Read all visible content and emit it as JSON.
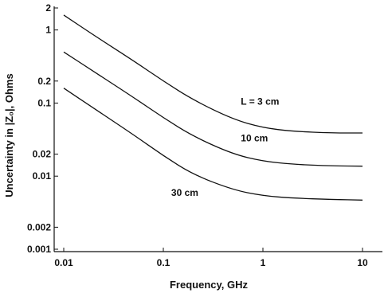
{
  "chart_data": {
    "type": "line",
    "title": "",
    "xlabel": "Frequency, GHz",
    "ylabel": "Uncertainty in |Z₀|, Ohms",
    "xscale": "log",
    "yscale": "log",
    "xlim": [
      0.01,
      10
    ],
    "ylim": [
      0.001,
      2
    ],
    "grid": false,
    "xticks": [
      {
        "value": 0.01,
        "label": "0.01"
      },
      {
        "value": 0.1,
        "label": "0.1"
      },
      {
        "value": 1,
        "label": "1"
      },
      {
        "value": 10,
        "label": "10"
      }
    ],
    "yticks": [
      {
        "value": 2,
        "label": "2"
      },
      {
        "value": 1,
        "label": "1"
      },
      {
        "value": 0.2,
        "label": "0.2"
      },
      {
        "value": 0.1,
        "label": "0.1"
      },
      {
        "value": 0.02,
        "label": "0.02"
      },
      {
        "value": 0.01,
        "label": "0.01"
      },
      {
        "value": 0.002,
        "label": "0.002"
      },
      {
        "value": 0.001,
        "label": "0.001"
      }
    ],
    "series": [
      {
        "name": "L = 3 cm",
        "label_at": [
          0.6,
          0.095
        ],
        "points": [
          [
            0.01,
            1.6
          ],
          [
            0.02,
            0.85
          ],
          [
            0.05,
            0.38
          ],
          [
            0.1,
            0.2
          ],
          [
            0.2,
            0.11
          ],
          [
            0.5,
            0.06
          ],
          [
            1,
            0.046
          ],
          [
            2,
            0.041
          ],
          [
            5,
            0.039
          ],
          [
            10,
            0.039
          ]
        ]
      },
      {
        "name": "10 cm",
        "label_at": [
          0.6,
          0.03
        ],
        "points": [
          [
            0.01,
            0.5
          ],
          [
            0.02,
            0.27
          ],
          [
            0.05,
            0.12
          ],
          [
            0.1,
            0.063
          ],
          [
            0.2,
            0.035
          ],
          [
            0.5,
            0.02
          ],
          [
            1,
            0.016
          ],
          [
            2,
            0.0145
          ],
          [
            5,
            0.0138
          ],
          [
            10,
            0.0137
          ]
        ]
      },
      {
        "name": "30 cm",
        "label_at": [
          0.12,
          0.0054
        ],
        "points": [
          [
            0.01,
            0.16
          ],
          [
            0.02,
            0.085
          ],
          [
            0.05,
            0.037
          ],
          [
            0.1,
            0.019
          ],
          [
            0.2,
            0.0105
          ],
          [
            0.5,
            0.0065
          ],
          [
            1,
            0.0054
          ],
          [
            2,
            0.005
          ],
          [
            5,
            0.0048
          ],
          [
            10,
            0.0047
          ]
        ]
      }
    ]
  }
}
